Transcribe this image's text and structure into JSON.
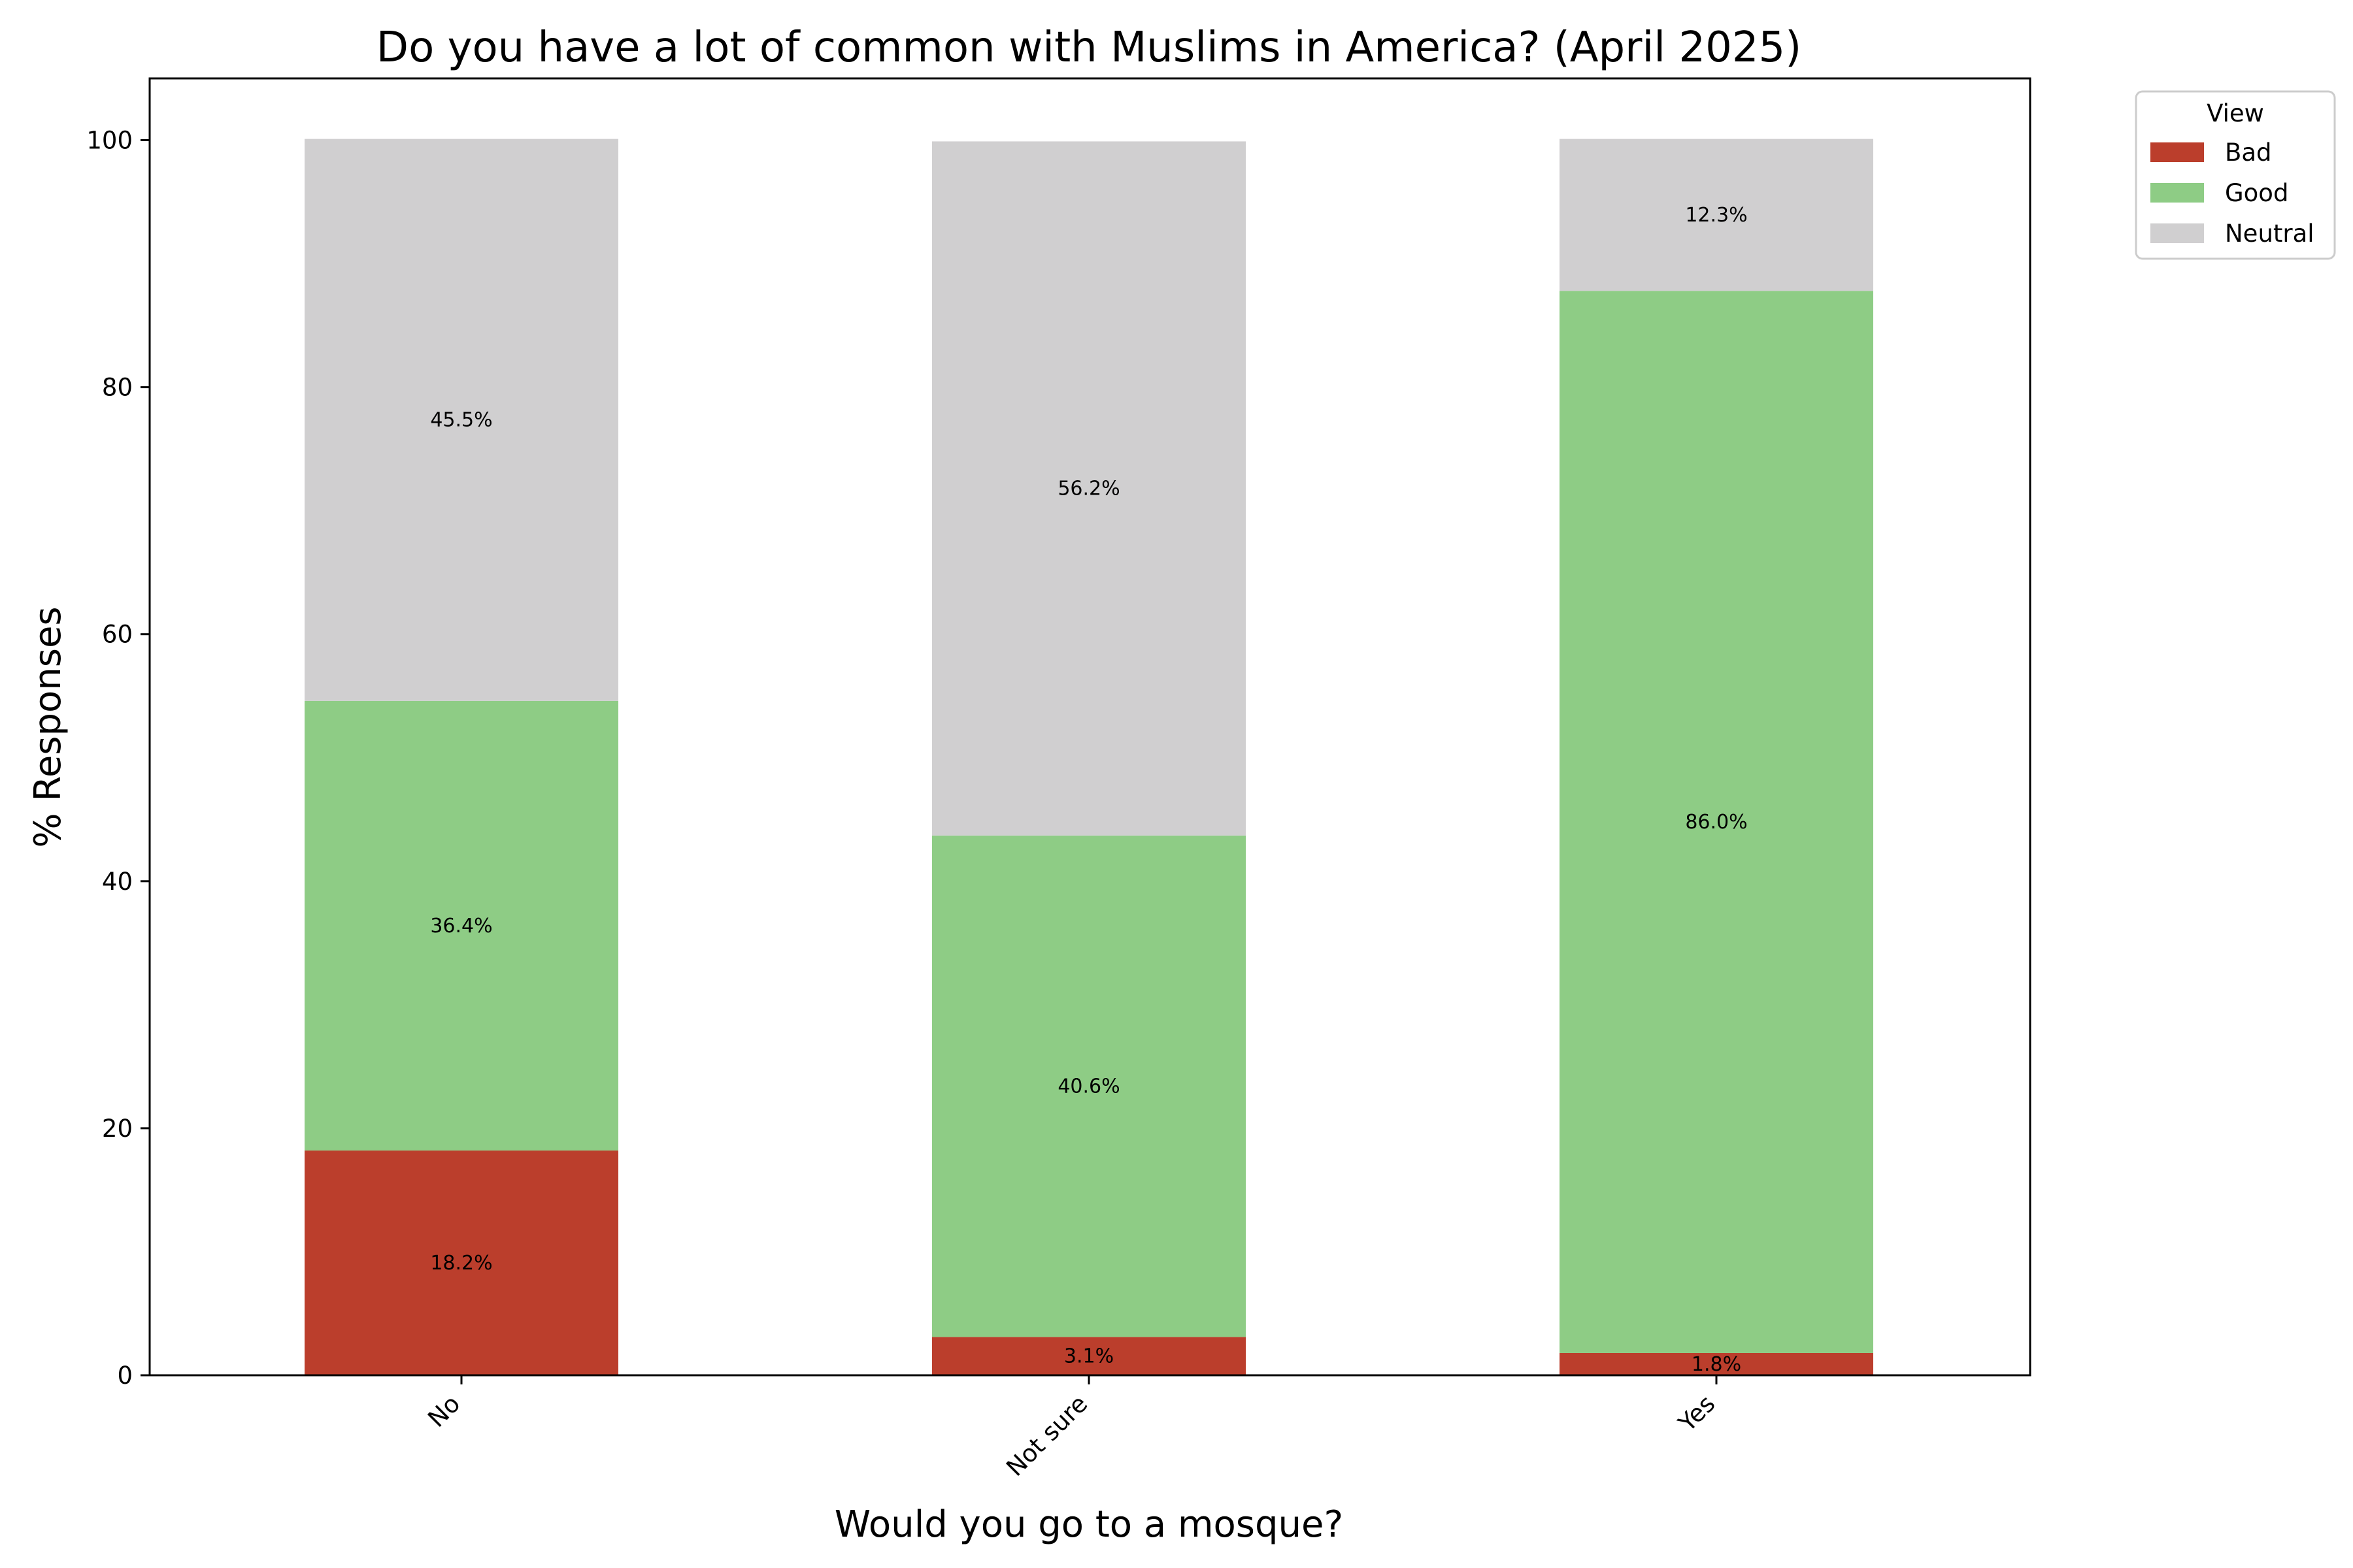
{
  "chart_data": {
    "type": "bar",
    "stacked": true,
    "title": "Do you have a lot of common with Muslims in America? (April 2025)",
    "xlabel": "Would you go to a mosque?",
    "ylabel": "% Responses",
    "categories": [
      "No",
      "Not sure",
      "Yes"
    ],
    "ylim": [
      0,
      105
    ],
    "yticks": [
      0,
      20,
      40,
      60,
      80,
      100
    ],
    "grid": false,
    "legend": {
      "title": "View",
      "placement": "outside top-right"
    },
    "series": [
      {
        "name": "Bad",
        "color": "#bb3e2c",
        "values": [
          18.2,
          3.1,
          1.8
        ],
        "labels": [
          "18.2%",
          "3.1%",
          "1.8%"
        ]
      },
      {
        "name": "Good",
        "color": "#8ecc85",
        "values": [
          36.4,
          40.6,
          86.0
        ],
        "labels": [
          "36.4%",
          "40.6%",
          "86.0%"
        ]
      },
      {
        "name": "Neutral",
        "color": "#d0cfd0",
        "values": [
          45.5,
          56.2,
          12.3
        ],
        "labels": [
          "45.5%",
          "56.2%",
          "12.3%"
        ]
      }
    ]
  }
}
